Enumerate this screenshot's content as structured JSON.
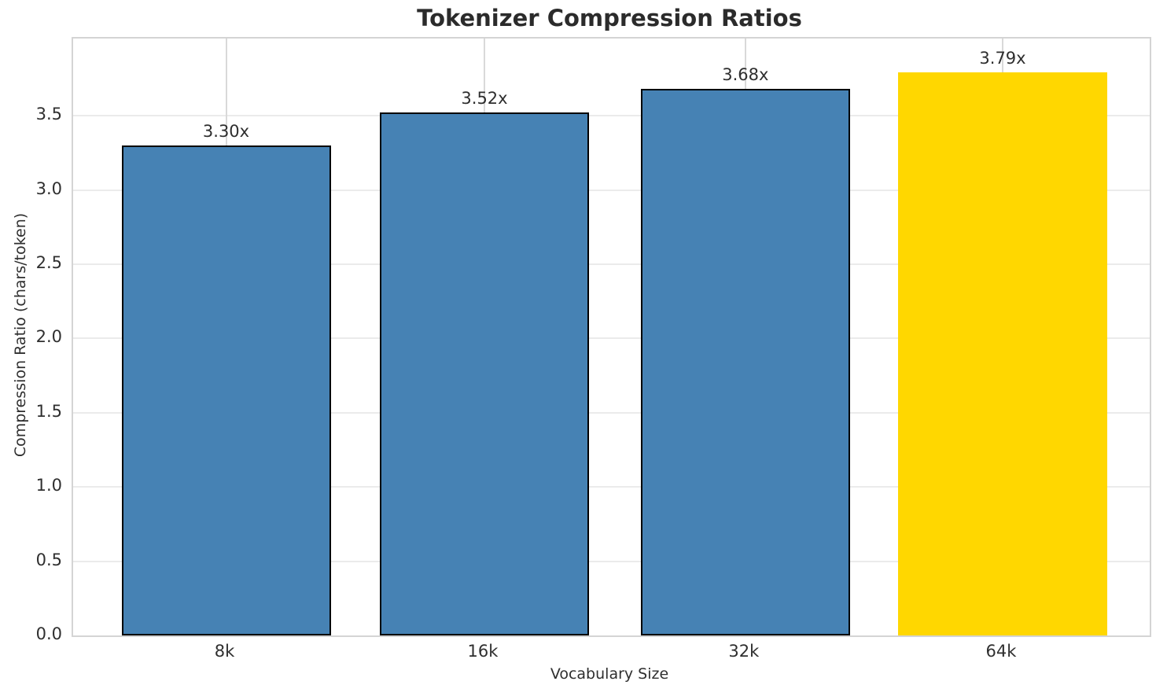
{
  "chart_data": {
    "type": "bar",
    "title": "Tokenizer Compression Ratios",
    "xlabel": "Vocabulary Size",
    "ylabel": "Compression Ratio (chars/token)",
    "categories": [
      "8k",
      "16k",
      "32k",
      "64k"
    ],
    "values": [
      3.3,
      3.52,
      3.68,
      3.79
    ],
    "bar_labels": [
      "3.30x",
      "3.52x",
      "3.68x",
      "3.79x"
    ],
    "bar_colors": [
      "#4682b4",
      "#4682b4",
      "#4682b4",
      "#ffd700"
    ],
    "bar_edge_colors": [
      "#000000",
      "#000000",
      "#000000",
      "#ffd700"
    ],
    "highlight_category": "64k",
    "yticks": [
      0.0,
      0.5,
      1.0,
      1.5,
      2.0,
      2.5,
      3.0,
      3.5
    ],
    "ytick_labels": [
      "0.0",
      "0.5",
      "1.0",
      "1.5",
      "2.0",
      "2.5",
      "3.0",
      "3.5"
    ],
    "ylim": [
      0,
      4.02
    ],
    "grid": true,
    "grid_axes": "both",
    "legend": null,
    "colors": {
      "bar_blue": "#4682b4",
      "bar_gold": "#ffd700",
      "bar_edge": "#000000",
      "spine": "#d4d4d4",
      "hgrid": "#ebebeb",
      "vgrid": "#d9d9d9",
      "text": "#2f2f2f",
      "title_text": "#2b2b2b",
      "background": "#ffffff"
    }
  }
}
